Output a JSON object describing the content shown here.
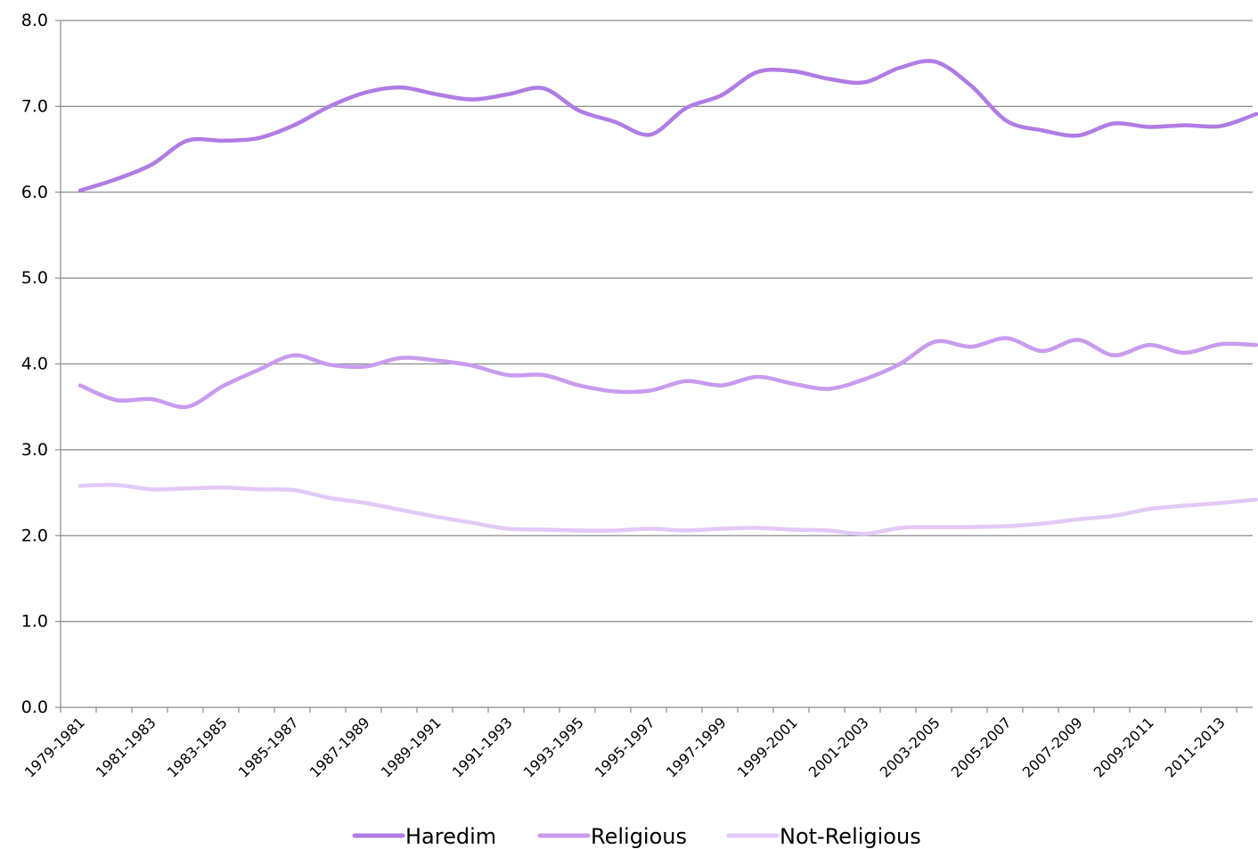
{
  "chart_data": {
    "type": "line",
    "title": "",
    "xlabel": "",
    "ylabel": "",
    "ylim": [
      0,
      8
    ],
    "yticks": [
      "0.0",
      "1.0",
      "2.0",
      "3.0",
      "4.0",
      "5.0",
      "6.0",
      "7.0",
      "8.0"
    ],
    "grid": true,
    "legend_position": "bottom",
    "categories": [
      "1979-1981",
      "1980-1982",
      "1981-1983",
      "1982-1984",
      "1983-1985",
      "1984-1986",
      "1985-1987",
      "1986-1988",
      "1987-1989",
      "1988-1990",
      "1989-1991",
      "1990-1992",
      "1991-1993",
      "1992-1994",
      "1993-1995",
      "1994-1996",
      "1995-1997",
      "1996-1998",
      "1997-1999",
      "1998-2000",
      "1999-2001",
      "2000-2002",
      "2001-2003",
      "2002-2004",
      "2003-2005",
      "2004-2006",
      "2005-2007",
      "2006-2008",
      "2007-2009",
      "2008-2010",
      "2009-2011",
      "2010-2012",
      "2011-2013",
      "2012-2014"
    ],
    "tick_labels": [
      "1979-1981",
      "1981-1983",
      "1983-1985",
      "1985-1987",
      "1987-1989",
      "1989-1991",
      "1991-1993",
      "1993-1995",
      "1995-1997",
      "1997-1999",
      "1999-2001",
      "2001-2003",
      "2003-2005",
      "2005-2007",
      "2007-2009",
      "2009-2011",
      "2011-2013"
    ],
    "series": [
      {
        "name": "Haredim",
        "color": "#b07ce3",
        "values": [
          6.02,
          6.15,
          6.32,
          6.6,
          6.6,
          6.63,
          6.78,
          7.0,
          7.16,
          7.22,
          7.14,
          7.08,
          7.14,
          7.21,
          6.95,
          6.82,
          6.67,
          6.98,
          7.13,
          7.4,
          7.41,
          7.32,
          7.28,
          7.45,
          7.52,
          7.24,
          6.83,
          6.72,
          6.66,
          6.8,
          6.76,
          6.78,
          6.77,
          6.91
        ]
      },
      {
        "name": "Religious",
        "color": "#c99bef",
        "values": [
          3.75,
          3.58,
          3.59,
          3.5,
          3.74,
          3.93,
          4.1,
          3.99,
          3.97,
          4.07,
          4.04,
          3.98,
          3.87,
          3.87,
          3.75,
          3.68,
          3.69,
          3.8,
          3.75,
          3.85,
          3.77,
          3.71,
          3.82,
          4.0,
          4.26,
          4.2,
          4.3,
          4.15,
          4.28,
          4.1,
          4.22,
          4.13,
          4.23,
          4.22
        ]
      },
      {
        "name": "Not-Religious",
        "color": "#e3c9f7",
        "values": [
          2.58,
          2.59,
          2.54,
          2.55,
          2.56,
          2.54,
          2.53,
          2.44,
          2.38,
          2.3,
          2.22,
          2.15,
          2.08,
          2.07,
          2.06,
          2.06,
          2.08,
          2.06,
          2.08,
          2.09,
          2.07,
          2.06,
          2.02,
          2.09,
          2.1,
          2.1,
          2.11,
          2.14,
          2.19,
          2.23,
          2.31,
          2.35,
          2.38,
          2.42
        ]
      }
    ]
  }
}
